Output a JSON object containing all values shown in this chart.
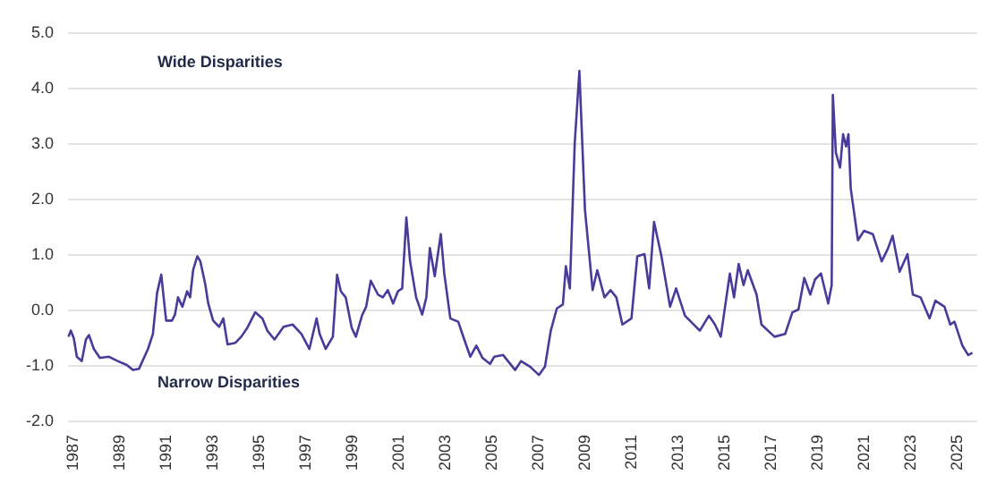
{
  "chart_data": {
    "type": "line",
    "annotations": [
      "Wide Disparities",
      "Narrow Disparities"
    ],
    "xlim": [
      1986.8,
      2025.9
    ],
    "xticks": [
      {
        "value": 1987,
        "label": "1987"
      },
      {
        "value": 1989,
        "label": "1989"
      },
      {
        "value": 1991,
        "label": "1991"
      },
      {
        "value": 1993,
        "label": "1993"
      },
      {
        "value": 1995,
        "label": "1995"
      },
      {
        "value": 1997,
        "label": "1997"
      },
      {
        "value": 1999,
        "label": "1999"
      },
      {
        "value": 2001,
        "label": "2001"
      },
      {
        "value": 2003,
        "label": "2003"
      },
      {
        "value": 2005,
        "label": "2005"
      },
      {
        "value": 2007,
        "label": "2007"
      },
      {
        "value": 2009,
        "label": "2009"
      },
      {
        "value": 2011,
        "label": "2011"
      },
      {
        "value": 2013,
        "label": "2013"
      },
      {
        "value": 2015,
        "label": "2015"
      },
      {
        "value": 2017,
        "label": "2017"
      },
      {
        "value": 2019,
        "label": "2019"
      },
      {
        "value": 2021,
        "label": "2021"
      },
      {
        "value": 2023,
        "label": "2023"
      },
      {
        "value": 2025,
        "label": "2025"
      }
    ],
    "ylim": [
      -2,
      5
    ],
    "yticks": [
      {
        "value": -2,
        "label": "-2.0"
      },
      {
        "value": -1,
        "label": "-1.0"
      },
      {
        "value": 0,
        "label": "0.0"
      },
      {
        "value": 1,
        "label": "1.0"
      },
      {
        "value": 2,
        "label": "2.0"
      },
      {
        "value": 3,
        "label": "3.0"
      },
      {
        "value": 4,
        "label": "4.0"
      },
      {
        "value": 5,
        "label": "5.0"
      }
    ],
    "grid": "y",
    "marker": "none",
    "line_style": "solid",
    "series": [
      {
        "color": "#4b3a9a",
        "x": [
          1986.82,
          1986.92,
          1987.05,
          1987.18,
          1987.39,
          1987.57,
          1987.7,
          1987.91,
          1988.17,
          1988.55,
          1988.94,
          1989.33,
          1989.59,
          1989.85,
          1990.24,
          1990.45,
          1990.63,
          1990.81,
          1990.94,
          1991.02,
          1991.27,
          1991.4,
          1991.53,
          1991.72,
          1991.92,
          1992.05,
          1992.18,
          1992.36,
          1992.49,
          1992.7,
          1992.83,
          1993.04,
          1993.3,
          1993.48,
          1993.66,
          1994,
          1994.25,
          1994.51,
          1994.85,
          1995.16,
          1995.37,
          1995.68,
          1996.07,
          1996.46,
          1996.84,
          1997.18,
          1997.49,
          1997.62,
          1997.88,
          1998.19,
          1998.37,
          1998.53,
          1998.74,
          1999,
          1999.18,
          1999.44,
          1999.62,
          1999.82,
          2000.13,
          2000.34,
          2000.55,
          2000.78,
          2000.99,
          2001.17,
          2001.35,
          2001.51,
          2001.77,
          2002.03,
          2002.21,
          2002.36,
          2002.57,
          2002.83,
          2002.98,
          2003.24,
          2003.58,
          2003.84,
          2004.1,
          2004.36,
          2004.62,
          2004.95,
          2005.13,
          2005.51,
          2006.03,
          2006.28,
          2006.67,
          2007.05,
          2007.31,
          2007.56,
          2007.82,
          2008.08,
          2008.21,
          2008.38,
          2008.59,
          2008.79,
          2009.03,
          2009.36,
          2009.56,
          2009.87,
          2010.13,
          2010.38,
          2010.64,
          2011.03,
          2011.28,
          2011.59,
          2011.79,
          2012,
          2012.31,
          2012.69,
          2012.95,
          2013.33,
          2013.97,
          2014.36,
          2014.62,
          2014.87,
          2015.26,
          2015.44,
          2015.64,
          2015.85,
          2016.03,
          2016.41,
          2016.62,
          2017.18,
          2017.64,
          2017.95,
          2018.21,
          2018.46,
          2018.72,
          2018.92,
          2019.18,
          2019.49,
          2019.64,
          2019.69,
          2019.82,
          2020,
          2020.13,
          2020.26,
          2020.36,
          2020.46,
          2020.77,
          2021.03,
          2021.41,
          2021.79,
          2022.05,
          2022.26,
          2022.56,
          2022.9,
          2023.13,
          2023.46,
          2023.85,
          2024.1,
          2024.49,
          2024.74,
          2024.92,
          2025.26,
          2025.51,
          2025.69
        ],
        "values": [
          -0.49,
          -0.38,
          -0.52,
          -0.85,
          -0.93,
          -0.54,
          -0.46,
          -0.71,
          -0.87,
          -0.85,
          -0.93,
          -1.0,
          -1.09,
          -1.07,
          -0.71,
          -0.44,
          0.3,
          0.63,
          0.11,
          -0.2,
          -0.2,
          -0.09,
          0.22,
          0.05,
          0.33,
          0.22,
          0.71,
          0.96,
          0.87,
          0.46,
          0.11,
          -0.2,
          -0.31,
          -0.16,
          -0.63,
          -0.6,
          -0.49,
          -0.33,
          -0.05,
          -0.16,
          -0.38,
          -0.54,
          -0.31,
          -0.27,
          -0.44,
          -0.71,
          -0.16,
          -0.44,
          -0.71,
          -0.49,
          0.63,
          0.33,
          0.22,
          -0.33,
          -0.49,
          -0.11,
          0.05,
          0.52,
          0.27,
          0.22,
          0.35,
          0.11,
          0.33,
          0.38,
          1.66,
          0.87,
          0.22,
          -0.09,
          0.22,
          1.11,
          0.6,
          1.36,
          0.65,
          -0.16,
          -0.22,
          -0.54,
          -0.85,
          -0.65,
          -0.87,
          -0.98,
          -0.85,
          -0.82,
          -1.09,
          -0.93,
          -1.03,
          -1.18,
          -1.03,
          -0.38,
          0.02,
          0.09,
          0.78,
          0.38,
          3.0,
          4.3,
          1.8,
          0.35,
          0.71,
          0.22,
          0.35,
          0.22,
          -0.27,
          -0.16,
          0.96,
          1.0,
          0.38,
          1.58,
          0.98,
          0.05,
          0.38,
          -0.11,
          -0.38,
          -0.11,
          -0.27,
          -0.49,
          0.65,
          0.22,
          0.82,
          0.44,
          0.71,
          0.27,
          -0.27,
          -0.49,
          -0.44,
          -0.05,
          0.0,
          0.57,
          0.27,
          0.54,
          0.65,
          0.11,
          0.44,
          3.87,
          2.83,
          2.56,
          3.16,
          2.94,
          3.16,
          2.18,
          1.25,
          1.42,
          1.36,
          0.87,
          1.09,
          1.33,
          0.68,
          1.0,
          0.27,
          0.22,
          -0.16,
          0.16,
          0.05,
          -0.27,
          -0.22,
          -0.65,
          -0.82,
          -0.78
        ]
      }
    ]
  }
}
